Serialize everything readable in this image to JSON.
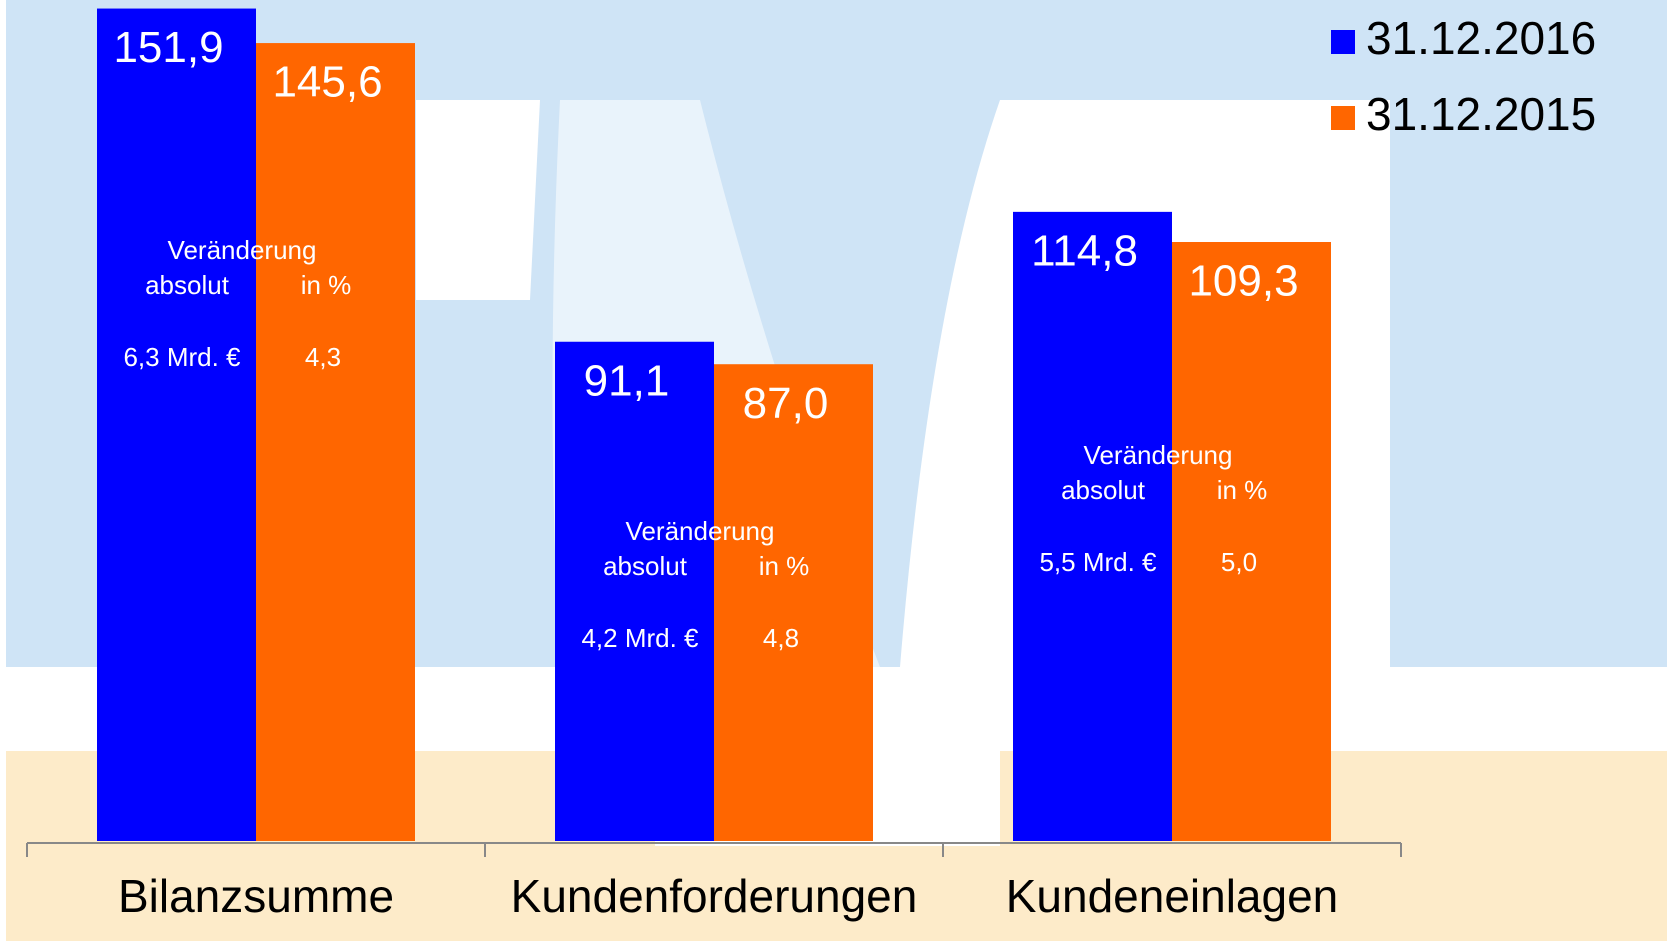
{
  "chart_data": {
    "type": "bar",
    "categories": [
      "Bilanzsumme",
      "Kundenforderungen",
      "Kundeneinlagen"
    ],
    "series": [
      {
        "name": "31.12.2016",
        "color": "#0000ff",
        "values": [
          151.9,
          91.1,
          114.8
        ],
        "value_labels": [
          "151,9",
          "91,1",
          "114,8"
        ]
      },
      {
        "name": "31.12.2015",
        "color": "#ff6600",
        "values": [
          145.6,
          87.0,
          109.3
        ],
        "value_labels": [
          "145,6",
          "87,0",
          "109,3"
        ]
      }
    ],
    "ylim": [
      0,
      152
    ],
    "legend": "top-right",
    "annotations": [
      {
        "header": "Veränderung",
        "absolute_label": "absolut",
        "percent_label": "in %",
        "absolute": "6,3 Mrd. €",
        "percent": "4,3"
      },
      {
        "header": "Veränderung",
        "absolute_label": "absolut",
        "percent_label": "in %",
        "absolute": "4,2 Mrd. €",
        "percent": "4,8"
      },
      {
        "header": "Veränderung",
        "absolute_label": "absolut",
        "percent_label": "in %",
        "absolute": "5,5 Mrd. €",
        "percent": "5,0"
      }
    ]
  }
}
